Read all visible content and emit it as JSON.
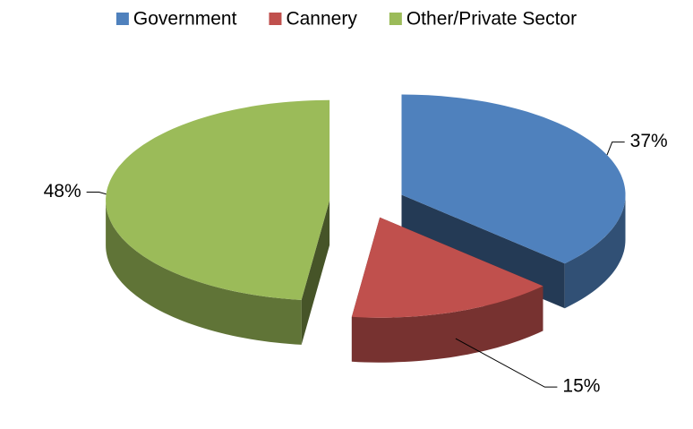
{
  "chart_data": {
    "type": "pie3d",
    "categories": [
      "Government",
      "Cannery",
      "Other/Private Sector"
    ],
    "values": [
      37,
      15,
      48
    ],
    "value_labels": [
      "37%",
      "15%",
      "48%"
    ],
    "colors": [
      "#4f81bd",
      "#c0504d",
      "#9bbb59"
    ],
    "legend": "top"
  }
}
